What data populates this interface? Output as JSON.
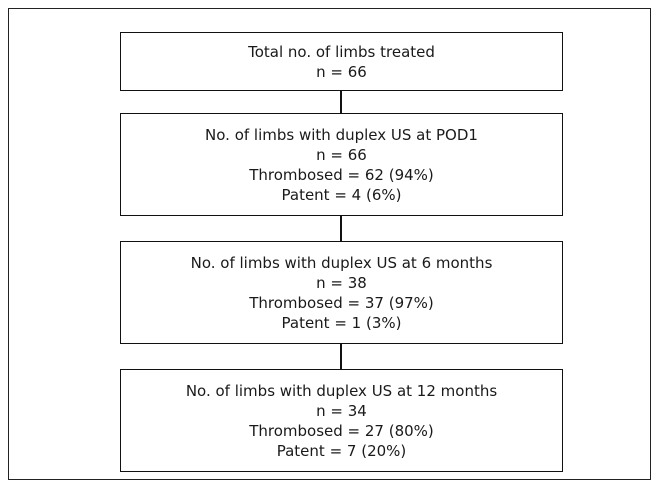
{
  "boxes": [
    {
      "title": "Total no. of limbs treated",
      "n": "n = 66"
    },
    {
      "title": "No. of limbs with duplex US at POD1",
      "n": "n = 66",
      "thrombosed": "Thrombosed = 62 (94%)",
      "patent": "Patent = 4 (6%)"
    },
    {
      "title": "No. of limbs with duplex US at 6 months",
      "n": "n = 38",
      "thrombosed": "Thrombosed = 37 (97%)",
      "patent": "Patent = 1 (3%)"
    },
    {
      "title": "No. of limbs with duplex US at 12 months",
      "n": "n = 34",
      "thrombosed": "Thrombosed = 27 (80%)",
      "patent": "Patent = 7 (20%)"
    }
  ]
}
